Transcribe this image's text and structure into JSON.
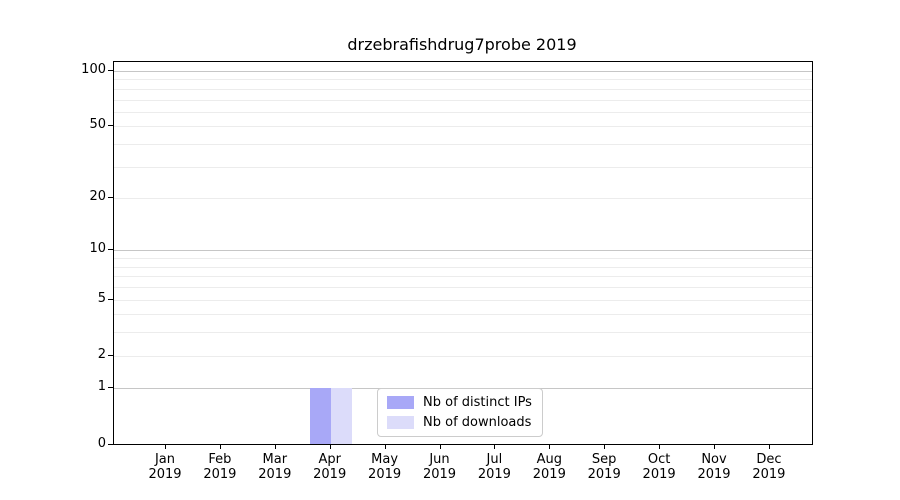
{
  "chart_data": {
    "type": "bar",
    "title": "drzebrafishdrug7probe 2019",
    "categories": [
      "Jan 2019",
      "Feb 2019",
      "Mar 2019",
      "Apr 2019",
      "May 2019",
      "Jun 2019",
      "Jul 2019",
      "Aug 2019",
      "Sep 2019",
      "Oct 2019",
      "Nov 2019",
      "Dec 2019"
    ],
    "series": [
      {
        "name": "Nb of distinct IPs",
        "color": "#a8a8f7",
        "values": [
          0,
          0,
          0,
          1,
          0,
          0,
          0,
          0,
          0,
          0,
          0,
          0
        ]
      },
      {
        "name": "Nb of downloads",
        "color": "#dcdcfa",
        "values": [
          0,
          0,
          0,
          1,
          0,
          0,
          0,
          0,
          0,
          0,
          0,
          0
        ]
      }
    ],
    "yscale": "log1p",
    "ylim": [
      0,
      112
    ],
    "yticks": [
      0,
      1,
      2,
      5,
      10,
      20,
      50,
      100
    ],
    "grid": "horizontal-minor-and-major",
    "legend_position": "inside-bottom-center"
  }
}
